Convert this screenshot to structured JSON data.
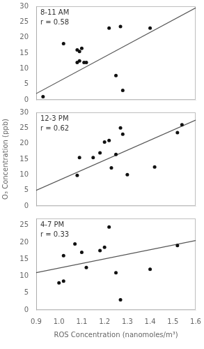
{
  "chart_data": [
    {
      "type": "scatter",
      "annotations": [
        "8-11 AM",
        "r = 0.58"
      ],
      "series": [
        {
          "type": "scatter",
          "color": "#111111",
          "x": [
            0.93,
            1.02,
            1.08,
            1.08,
            1.09,
            1.09,
            1.1,
            1.11,
            1.12,
            1.22,
            1.25,
            1.27,
            1.28,
            1.4
          ],
          "values": [
            1.0,
            18.0,
            12.0,
            16.0,
            15.5,
            12.5,
            16.5,
            12.0,
            12.0,
            23.0,
            7.8,
            23.5,
            3.0,
            23.0
          ]
        },
        {
          "type": "line",
          "color": "#555555",
          "x": [
            0.9,
            1.6
          ],
          "values": [
            2.0,
            29.5
          ]
        }
      ],
      "xlim": [
        0.9,
        1.6
      ],
      "xticks": [
        0.9,
        1.0,
        1.1,
        1.2,
        1.3,
        1.4,
        1.5,
        1.6
      ],
      "ylim": [
        0,
        30
      ],
      "yticks": [
        0,
        5,
        10,
        15,
        20,
        25,
        30
      ],
      "grid": false,
      "tick_labels": "y"
    },
    {
      "type": "scatter",
      "ylabel": "O₃ Concentration (ppb)",
      "annotations": [
        "12-3 PM",
        "r = 0.62"
      ],
      "series": [
        {
          "type": "scatter",
          "color": "#111111",
          "x": [
            1.08,
            1.09,
            1.15,
            1.18,
            1.2,
            1.22,
            1.23,
            1.25,
            1.27,
            1.28,
            1.3,
            1.42,
            1.52,
            1.54
          ],
          "values": [
            9.8,
            15.5,
            15.5,
            17.0,
            20.5,
            21.0,
            12.2,
            16.5,
            25.0,
            23.0,
            10.0,
            12.5,
            23.5,
            26.0
          ]
        },
        {
          "type": "line",
          "color": "#555555",
          "x": [
            0.9,
            1.6
          ],
          "values": [
            5.0,
            27.5
          ]
        }
      ],
      "xlim": [
        0.9,
        1.6
      ],
      "xticks": [
        0.9,
        1.0,
        1.1,
        1.2,
        1.3,
        1.4,
        1.5,
        1.6
      ],
      "ylim": [
        0,
        30
      ],
      "yticks": [
        0,
        5,
        10,
        15,
        20,
        25,
        30
      ],
      "grid": false,
      "tick_labels": "y"
    },
    {
      "type": "scatter",
      "xlabel": "ROS Concentration (nanomoles/m³)",
      "annotations": [
        "4-7 PM",
        "r = 0.33"
      ],
      "series": [
        {
          "type": "scatter",
          "color": "#111111",
          "x": [
            1.0,
            1.02,
            1.02,
            1.07,
            1.1,
            1.12,
            1.18,
            1.2,
            1.22,
            1.25,
            1.27,
            1.4,
            1.52
          ],
          "values": [
            8.0,
            8.5,
            16.0,
            19.5,
            17.0,
            12.5,
            17.5,
            18.5,
            24.5,
            11.0,
            3.0,
            12.0,
            19.0
          ]
        },
        {
          "type": "line",
          "color": "#555555",
          "x": [
            0.9,
            1.6
          ],
          "values": [
            11.0,
            20.5
          ]
        }
      ],
      "xlim": [
        0.9,
        1.6
      ],
      "xticks": [
        0.9,
        {
          "value": 1.0,
          "label": "1.0"
        },
        1.1,
        1.2,
        1.3,
        1.4,
        1.5,
        1.6
      ],
      "ylim": [
        0,
        27
      ],
      "yticks": [
        0,
        5,
        10,
        15,
        20,
        25
      ],
      "grid": false
    }
  ]
}
